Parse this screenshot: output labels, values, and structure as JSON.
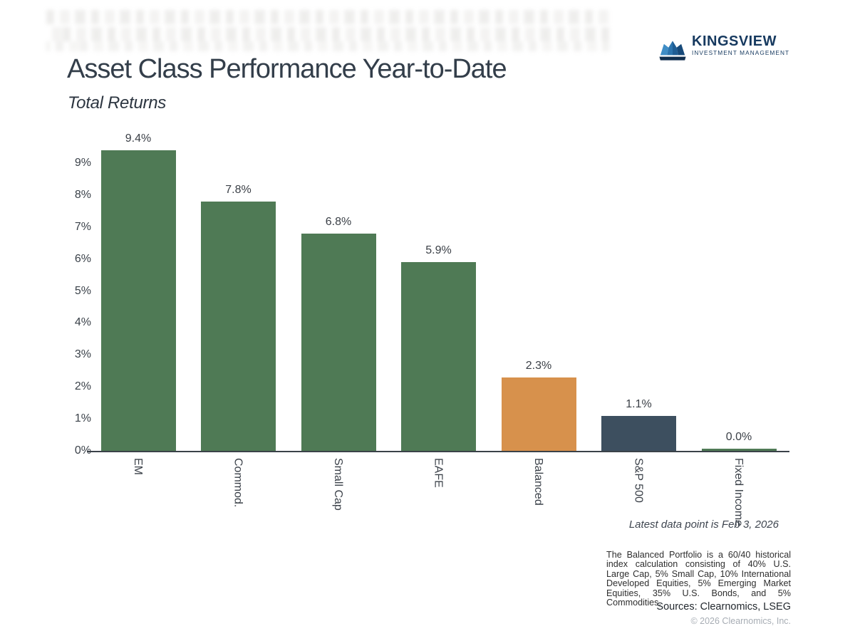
{
  "header": {
    "title": "Asset Class Performance Year-to-Date",
    "subtitle": "Total Returns"
  },
  "brand": {
    "name": "KINGSVIEW",
    "tagline": "INVESTMENT MANAGEMENT",
    "logo_icon": "crown-icon",
    "navy": "#16395f",
    "blue": "#3f8dc6"
  },
  "chart_data": {
    "type": "bar",
    "title": "Asset Class Performance Year-to-Date",
    "subtitle": "Total Returns",
    "categories": [
      "EM",
      "Commod.",
      "Small Cap",
      "EAFE",
      "Balanced",
      "S&P 500",
      "Fixed Income"
    ],
    "values": [
      9.4,
      7.8,
      6.8,
      5.9,
      2.3,
      1.1,
      0.0
    ],
    "value_labels": [
      "9.4%",
      "7.8%",
      "6.8%",
      "5.9%",
      "2.3%",
      "1.1%",
      "0.0%"
    ],
    "bar_colors": [
      "#4f7a55",
      "#4f7a55",
      "#4f7a55",
      "#4f7a55",
      "#d7914c",
      "#3d4f5f",
      "#4f7a55"
    ],
    "y_ticks": [
      "0%",
      "1%",
      "2%",
      "3%",
      "4%",
      "5%",
      "6%",
      "7%",
      "8%",
      "9%"
    ],
    "y_tick_values": [
      0,
      1,
      2,
      3,
      4,
      5,
      6,
      7,
      8,
      9
    ],
    "ylim": [
      0,
      10
    ],
    "xlabel": "",
    "ylabel": "",
    "grid": false,
    "legend": "none",
    "bar_label_rotation": "vertical"
  },
  "notes": {
    "latest_data": "Latest data point is Feb 3, 2026",
    "footnote": "The Balanced Portfolio is a 60/40 historical index calculation consisting of 40% U.S. Large Cap, 5% Small Cap, 10% International Developed Equities, 5% Emerging Market Equities, 35% U.S. Bonds, and 5% Commodities.",
    "sources": "Sources: Clearnomics, LSEG",
    "copyright": "© 2026 Clearnomics, Inc."
  }
}
